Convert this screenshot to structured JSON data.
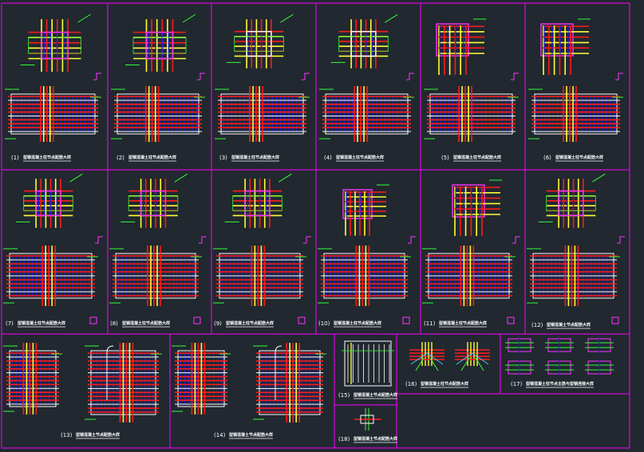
{
  "sheet": {
    "frame_color": "#ff00ff",
    "background": "#212830"
  },
  "palette": {
    "red": "#ff1a1a",
    "yellow": "#ffff33",
    "blue": "#1a1aff",
    "green": "#33ff33",
    "magenta": "#ff33ff",
    "white": "#ffffff",
    "cyan": "#33ccff",
    "orange": "#ff9933"
  },
  "details": [
    {
      "number": "(1)",
      "caption": "型钢混凝土柱节点配筋大样"
    },
    {
      "number": "(2)",
      "caption": "型钢混凝土柱节点配筋大样"
    },
    {
      "number": "(3)",
      "caption": "型钢混凝土柱节点配筋大样"
    },
    {
      "number": "(4)",
      "caption": "型钢混凝土柱节点配筋大样"
    },
    {
      "number": "(5)",
      "caption": "型钢混凝土柱节点配筋大样"
    },
    {
      "number": "(6)",
      "caption": "型钢混凝土柱节点配筋大样"
    },
    {
      "number": "(7)",
      "caption": "型钢混凝土柱节点配筋大样"
    },
    {
      "number": "(8)",
      "caption": "型钢混凝土柱节点配筋大样"
    },
    {
      "number": "(9)",
      "caption": "型钢混凝土柱节点配筋大样"
    },
    {
      "number": "(10)",
      "caption": "型钢混凝土柱节点配筋大样"
    },
    {
      "number": "(11)",
      "caption": "型钢混凝土柱节点配筋大样"
    },
    {
      "number": "(12)",
      "caption": "型钢混凝土节点配筋大样"
    },
    {
      "number": "(13)",
      "caption": "型钢混凝土节点配筋大样"
    },
    {
      "number": "(14)",
      "caption": "型钢混凝土节点配筋大样"
    },
    {
      "number": "(15)",
      "caption": "型钢混凝土节点配筋大样"
    },
    {
      "number": "(16)",
      "caption": "型钢混凝土柱节点配筋大样"
    },
    {
      "number": "(17)",
      "caption": "型钢混凝土柱节点主筋与型钢连接大样"
    },
    {
      "number": "(18)",
      "caption": "型钢混凝土节点配筋大样"
    }
  ]
}
